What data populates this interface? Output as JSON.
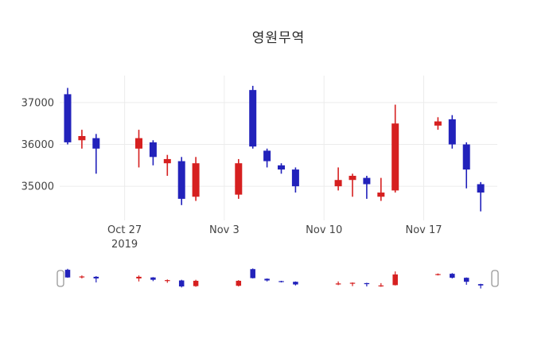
{
  "chart_data": {
    "type": "candlestick",
    "title": "영원무역",
    "xlabel": "",
    "ylabel": "",
    "legend": "none",
    "grid": true,
    "rangeslider": true,
    "increasing_color": "#d62020",
    "decreasing_color": "#2222bb",
    "ylim": [
      34280,
      37550
    ],
    "slider_ylim": [
      34350,
      37450
    ],
    "y_ticks": [
      35000,
      36000,
      37000
    ],
    "x_ticks": [
      {
        "date": "2019-10-27",
        "label": "Oct 27",
        "sublabel": "2019"
      },
      {
        "date": "2019-11-03",
        "label": "Nov 3",
        "sublabel": ""
      },
      {
        "date": "2019-11-10",
        "label": "Nov 10",
        "sublabel": ""
      },
      {
        "date": "2019-11-17",
        "label": "Nov 17",
        "sublabel": ""
      }
    ],
    "candles": [
      {
        "date": "2019-10-23",
        "open": 37200,
        "high": 37350,
        "low": 36000,
        "close": 36050
      },
      {
        "date": "2019-10-24",
        "open": 36100,
        "high": 36350,
        "low": 35900,
        "close": 36200
      },
      {
        "date": "2019-10-25",
        "open": 36150,
        "high": 36250,
        "low": 35300,
        "close": 35900
      },
      {
        "date": "2019-10-28",
        "open": 35900,
        "high": 36350,
        "low": 35450,
        "close": 36150
      },
      {
        "date": "2019-10-29",
        "open": 36050,
        "high": 36100,
        "low": 35500,
        "close": 35700
      },
      {
        "date": "2019-10-30",
        "open": 35550,
        "high": 35750,
        "low": 35250,
        "close": 35650
      },
      {
        "date": "2019-10-31",
        "open": 35600,
        "high": 35700,
        "low": 34550,
        "close": 34700
      },
      {
        "date": "2019-11-01",
        "open": 34750,
        "high": 35700,
        "low": 34650,
        "close": 35550
      },
      {
        "date": "2019-11-04",
        "open": 34800,
        "high": 35650,
        "low": 34700,
        "close": 35550
      },
      {
        "date": "2019-11-05",
        "open": 37300,
        "high": 37400,
        "low": 35900,
        "close": 35950
      },
      {
        "date": "2019-11-06",
        "open": 35850,
        "high": 35900,
        "low": 35450,
        "close": 35600
      },
      {
        "date": "2019-11-07",
        "open": 35500,
        "high": 35550,
        "low": 35300,
        "close": 35400
      },
      {
        "date": "2019-11-08",
        "open": 35400,
        "high": 35450,
        "low": 34850,
        "close": 35000
      },
      {
        "date": "2019-11-11",
        "open": 35000,
        "high": 35450,
        "low": 34900,
        "close": 35150
      },
      {
        "date": "2019-11-12",
        "open": 35150,
        "high": 35300,
        "low": 34750,
        "close": 35250
      },
      {
        "date": "2019-11-13",
        "open": 35200,
        "high": 35250,
        "low": 34700,
        "close": 35050
      },
      {
        "date": "2019-11-14",
        "open": 34750,
        "high": 35200,
        "low": 34650,
        "close": 34850
      },
      {
        "date": "2019-11-15",
        "open": 34900,
        "high": 36950,
        "low": 34850,
        "close": 36500
      },
      {
        "date": "2019-11-18",
        "open": 36450,
        "high": 36650,
        "low": 36350,
        "close": 36550
      },
      {
        "date": "2019-11-19",
        "open": 36600,
        "high": 36700,
        "low": 35900,
        "close": 36000
      },
      {
        "date": "2019-11-20",
        "open": 36000,
        "high": 36050,
        "low": 34950,
        "close": 35400
      },
      {
        "date": "2019-11-21",
        "open": 35050,
        "high": 35100,
        "low": 34400,
        "close": 34850
      }
    ]
  },
  "slider": {
    "left_handle_icon": "grab-handle-icon",
    "right_handle_icon": "grab-handle-icon"
  },
  "colors": {
    "background": "#ffffff",
    "gridline": "#ececec",
    "tick_text": "#444444",
    "title_text": "#2a2a2a",
    "handle_stroke": "#999999"
  }
}
